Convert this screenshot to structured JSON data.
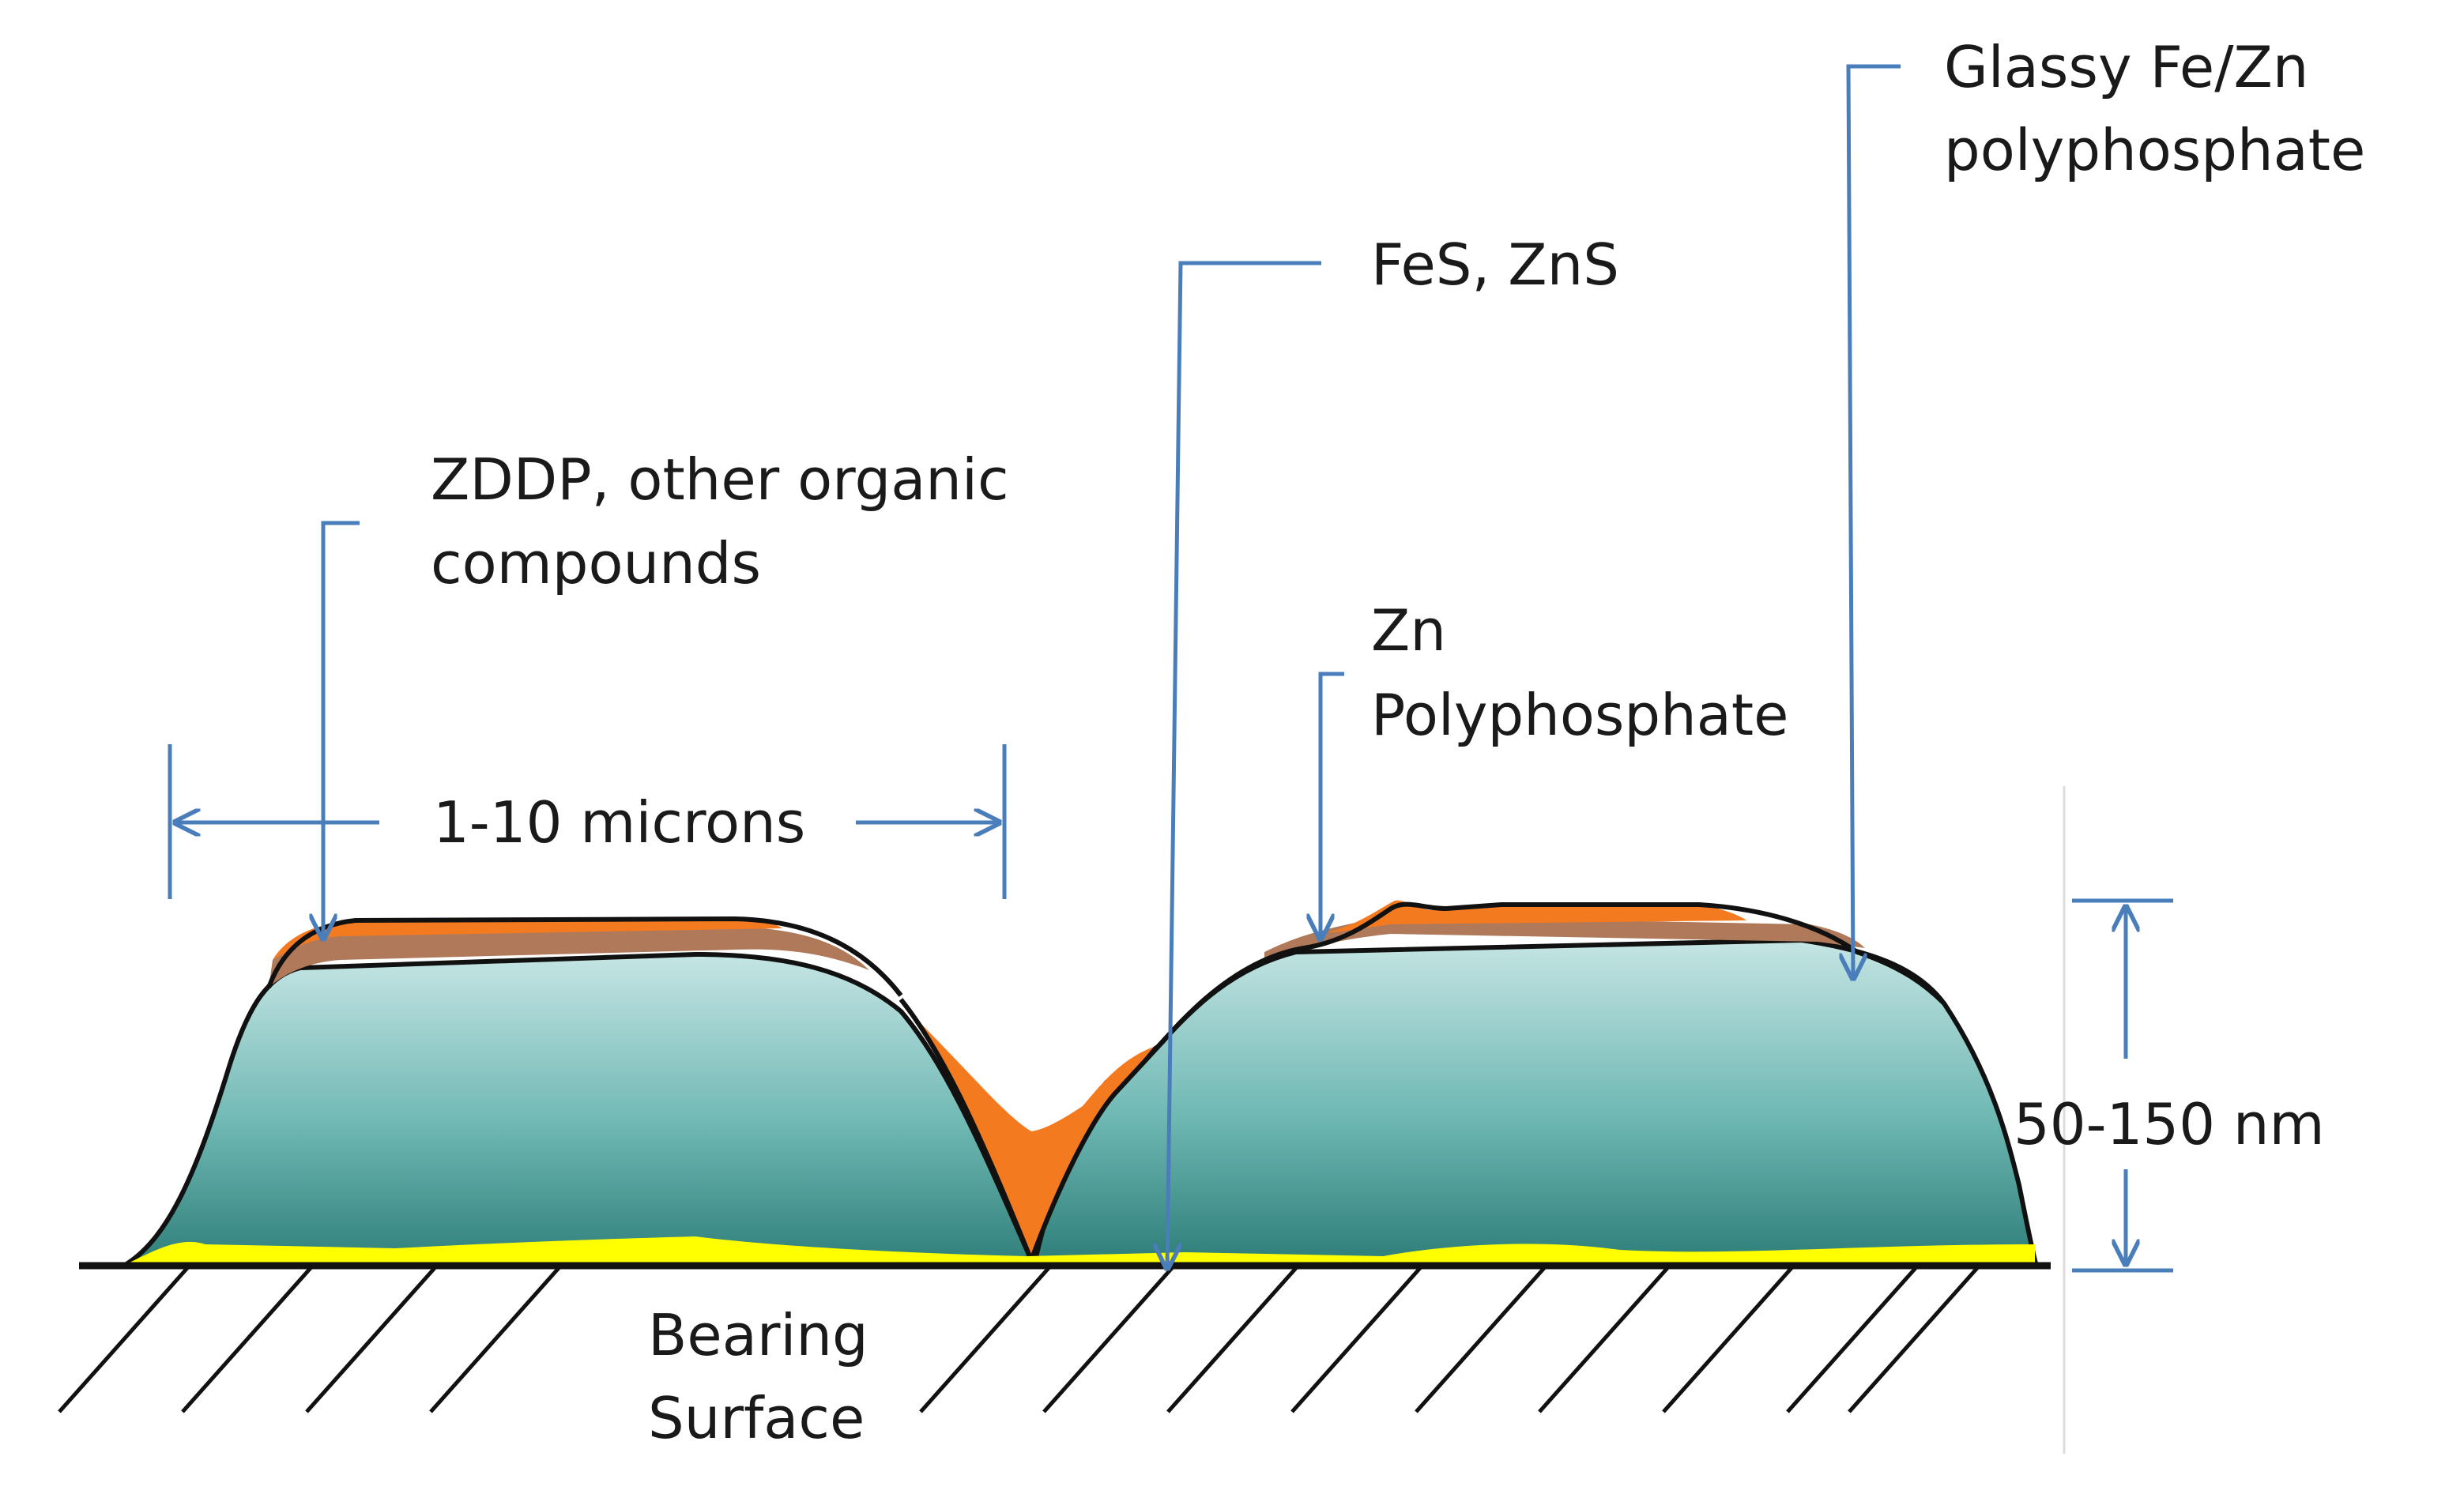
{
  "labels": {
    "glassy_line1": "Glassy Fe/Zn",
    "glassy_line2": "polyphosphate",
    "fes_zns": "FeS, ZnS",
    "zddp_line1": "ZDDP, other organic",
    "zddp_line2": "compounds",
    "zn_line1": "Zn",
    "zn_line2": "Polyphosphate",
    "width": "1-10 microns",
    "thickness": "50-150 nm",
    "bearing_line1": "Bearing",
    "bearing_line2": "Surface"
  },
  "colors": {
    "leader_line": "#4a7ebb",
    "zddp_layer": "#b07a5a",
    "sulfide_layer": "#f47a20",
    "interface_layer": "#ffff00",
    "film_top": "#c5e5e3",
    "film_bottom": "#2f7f7a",
    "outline": "#111111"
  }
}
